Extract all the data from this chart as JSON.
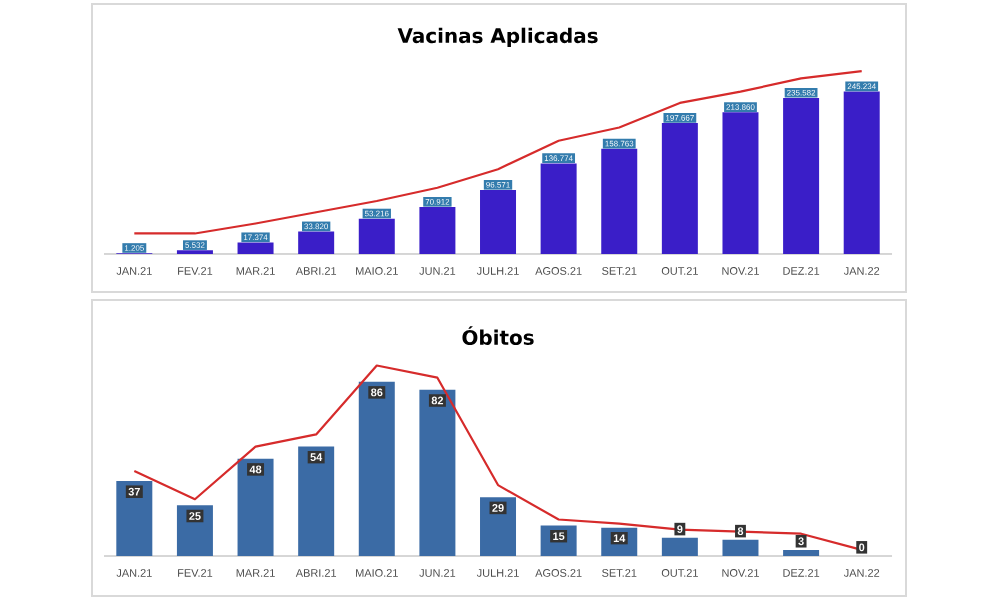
{
  "chart_data": [
    {
      "type": "bar",
      "title": "Vacinas Aplicadas",
      "categories": [
        "JAN.21",
        "FEV.21",
        "MAR.21",
        "ABRI.21",
        "MAIO.21",
        "JUN.21",
        "JULH.21",
        "AGOS.21",
        "SET.21",
        "OUT.21",
        "NOV.21",
        "DEZ.21",
        "JAN.22"
      ],
      "tick_labels": "x",
      "series": [
        {
          "color": "#3a1ec8",
          "values": [
            1205,
            5532,
            17374,
            33820,
            53216,
            70912,
            96571,
            136774,
            158763,
            197667,
            213860,
            235582,
            245234
          ],
          "value_labels": [
            "1.205",
            "5.532",
            "17.374",
            "33.820",
            "53.216",
            "70.912",
            "96.571",
            "136.774",
            "158.763",
            "197.667",
            "213.860",
            "235.582",
            "245.234"
          ]
        },
        {
          "type": "line",
          "color": "#d62b2b",
          "values": [
            31000,
            31000,
            46000,
            63000,
            80000,
            100000,
            128000,
            171000,
            191000,
            228000,
            245000,
            265000,
            276000
          ]
        }
      ]
    },
    {
      "type": "bar",
      "title": "Óbitos",
      "categories": [
        "JAN.21",
        "FEV.21",
        "MAR.21",
        "ABRI.21",
        "MAIO.21",
        "JUN.21",
        "JULH.21",
        "AGOS.21",
        "SET.21",
        "OUT.21",
        "NOV.21",
        "DEZ.21",
        "JAN.22"
      ],
      "tick_labels": "x",
      "series": [
        {
          "color": "#3b6ba5",
          "values": [
            37,
            25,
            48,
            54,
            86,
            82,
            29,
            15,
            14,
            9,
            8,
            3,
            0
          ],
          "value_labels": [
            "37",
            "25",
            "48",
            "54",
            "86",
            "82",
            "29",
            "15",
            "14",
            "9",
            "8",
            "3",
            "0"
          ]
        },
        {
          "type": "line",
          "color": "#d62b2b",
          "values": [
            42,
            28,
            54,
            60,
            94,
            88,
            35,
            18,
            16,
            13,
            12,
            11,
            3
          ]
        }
      ]
    }
  ]
}
